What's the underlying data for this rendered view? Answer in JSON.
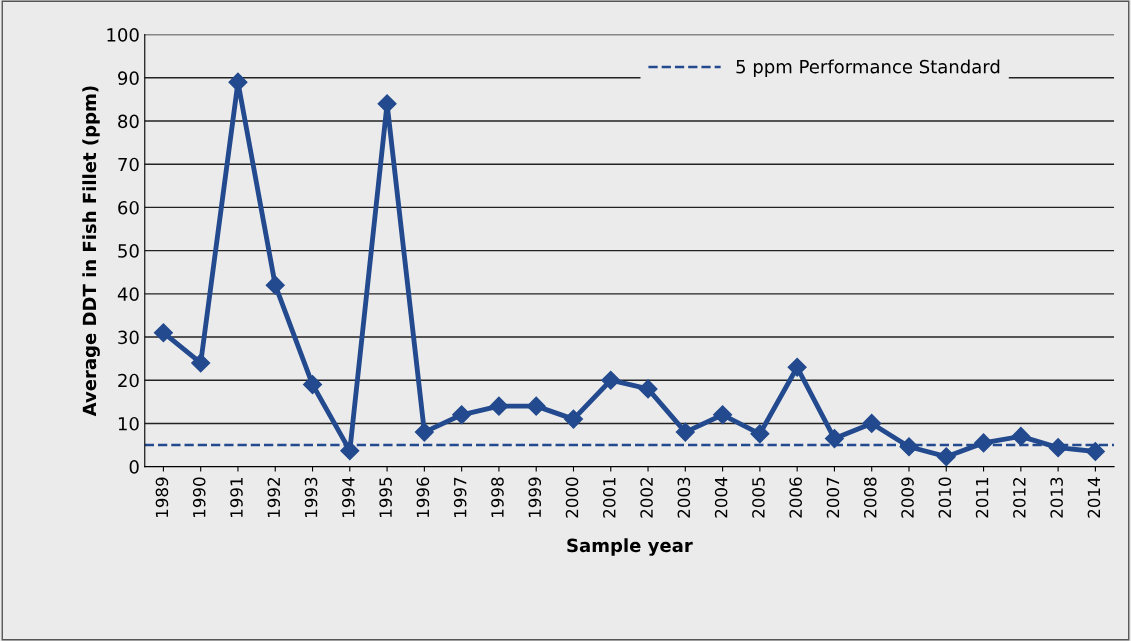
{
  "chart_data": {
    "type": "line",
    "xlabel": "Sample year",
    "ylabel": "Average DDT in Fish Fillet (ppm)",
    "categories": [
      "1989",
      "1990",
      "1991",
      "1992",
      "1993",
      "1994",
      "1995",
      "1996",
      "1997",
      "1998",
      "1999",
      "2000",
      "2001",
      "2002",
      "2003",
      "2004",
      "2005",
      "2006",
      "2007",
      "2008",
      "2009",
      "2010",
      "2011",
      "2012",
      "2013",
      "2014"
    ],
    "series": [
      {
        "color": "#234a8e",
        "values": [
          31,
          24,
          89,
          42,
          19,
          3.7,
          84,
          8,
          12,
          14,
          14,
          11,
          20,
          18,
          8,
          12,
          7.6,
          23,
          6.5,
          10,
          4.6,
          2.3,
          5.5,
          7,
          4.4,
          3.5
        ]
      }
    ],
    "ylim": [
      0,
      100
    ],
    "yticks": [
      0,
      10,
      20,
      30,
      40,
      50,
      60,
      70,
      80,
      90,
      100
    ],
    "ref_lines": [
      {
        "axis": "y",
        "value": 5,
        "label": "5 ppm Performance Standard",
        "color": "#234a8e",
        "line_style": "dashed"
      }
    ],
    "grid": "y",
    "legend": "top right",
    "marker": "diamond",
    "line_style": "solid"
  }
}
